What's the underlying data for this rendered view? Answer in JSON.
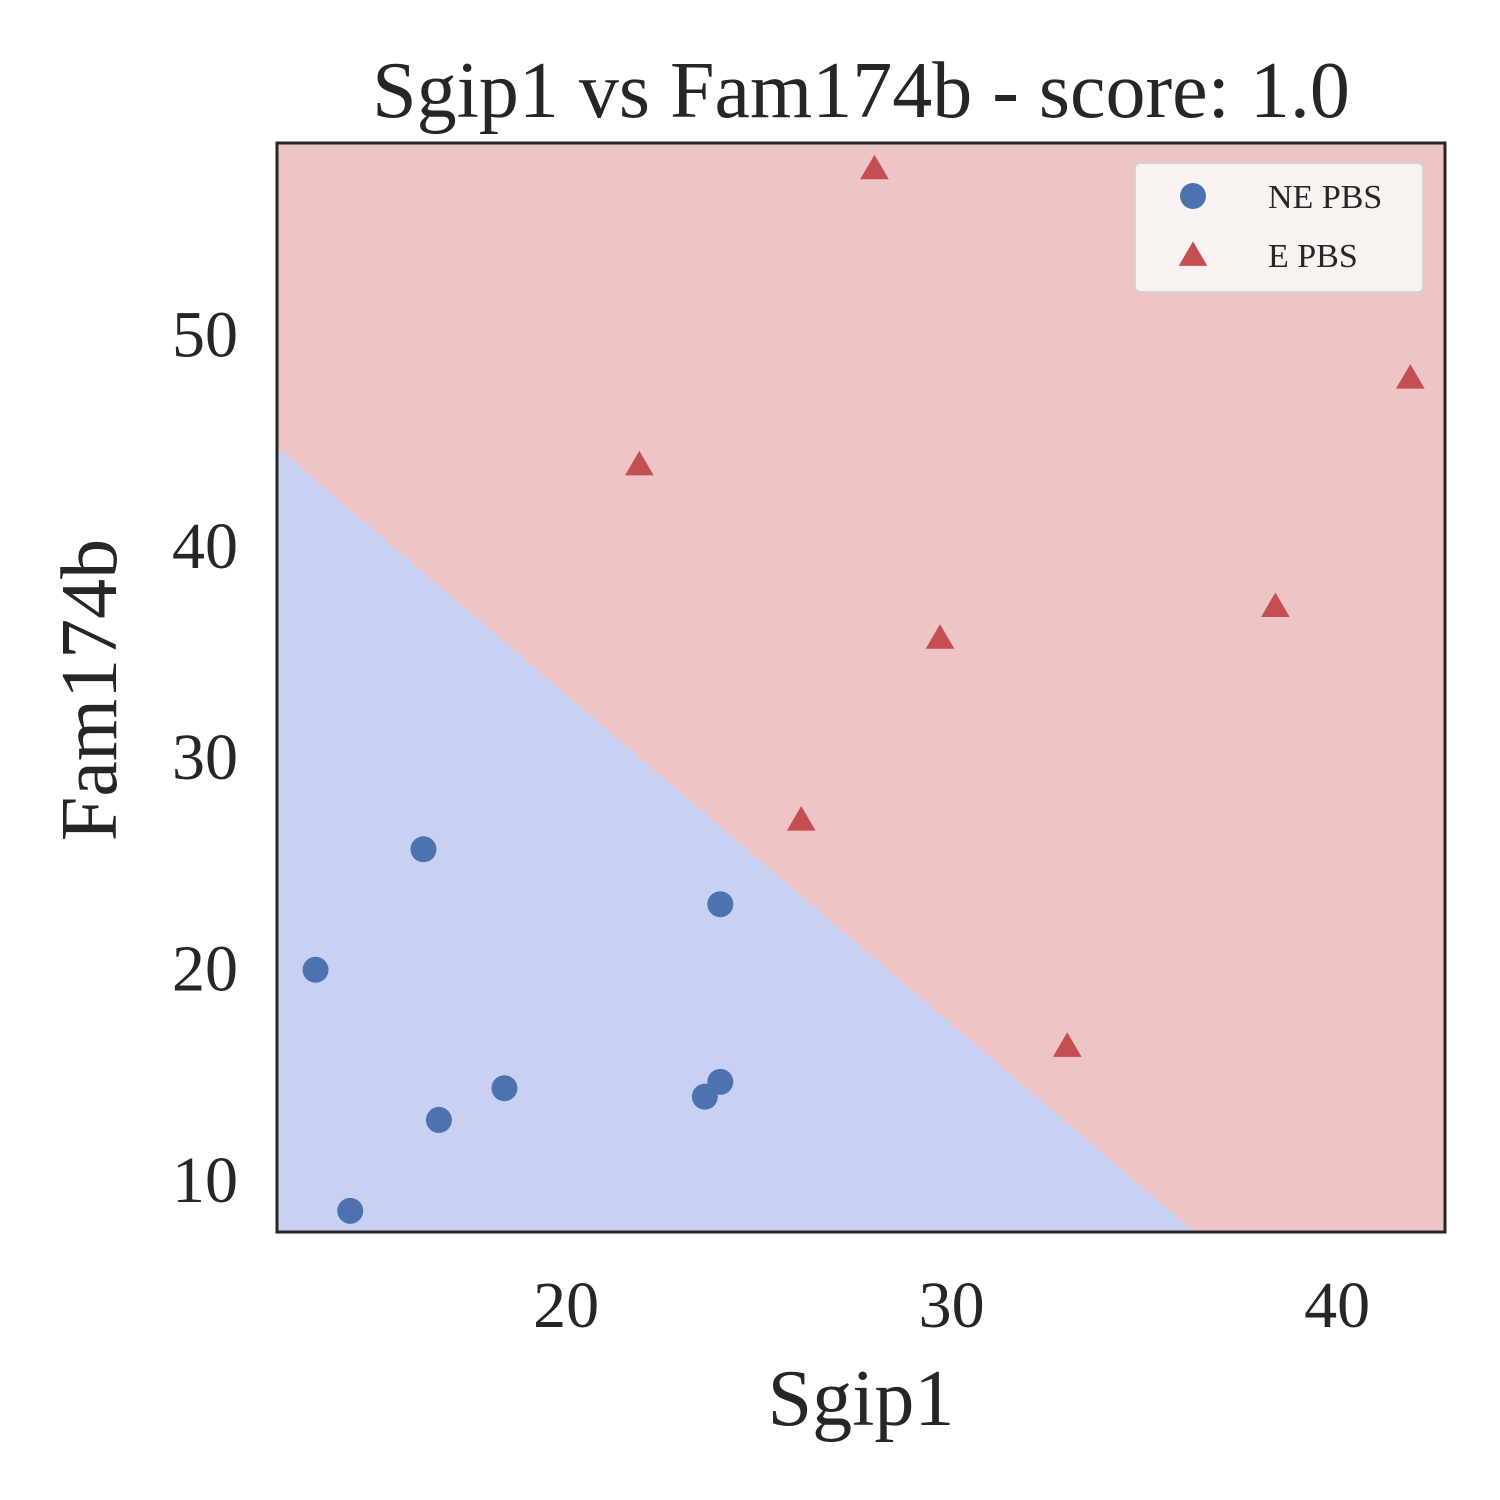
{
  "chart_data": {
    "type": "scatter",
    "title": "Sgip1 vs Fam174b - score: 1.0",
    "xlabel": "Sgip1",
    "ylabel": "Fam174b",
    "xlim": [
      12.5,
      42.8
    ],
    "ylim": [
      7.5,
      59
    ],
    "xticks": [
      20,
      30,
      40
    ],
    "yticks": [
      10,
      20,
      30,
      40,
      50
    ],
    "grid": false,
    "legend_position": "top-right",
    "decision_boundary": {
      "points": [
        [
          12.5,
          44.6
        ],
        [
          36.3,
          7.5
        ]
      ],
      "below_region": "NE PBS",
      "above_region": "E PBS"
    },
    "series": [
      {
        "name": "NE PBS",
        "marker": "circle",
        "color": "#4c72b0",
        "region_color": "#c9d1f2",
        "points": [
          [
            13.5,
            19.9
          ],
          [
            14.4,
            8.5
          ],
          [
            16.3,
            25.6
          ],
          [
            16.7,
            12.8
          ],
          [
            18.4,
            14.3
          ],
          [
            23.6,
            13.9
          ],
          [
            24.0,
            14.6
          ],
          [
            24.0,
            23.0
          ]
        ]
      },
      {
        "name": "E PBS",
        "marker": "triangle",
        "color": "#c44e52",
        "region_color": "#eec4c4",
        "points": [
          [
            21.9,
            43.8
          ],
          [
            26.1,
            27.0
          ],
          [
            28.0,
            57.8
          ],
          [
            29.7,
            35.6
          ],
          [
            33.0,
            16.3
          ],
          [
            38.4,
            37.1
          ],
          [
            41.9,
            47.9
          ]
        ]
      }
    ]
  }
}
